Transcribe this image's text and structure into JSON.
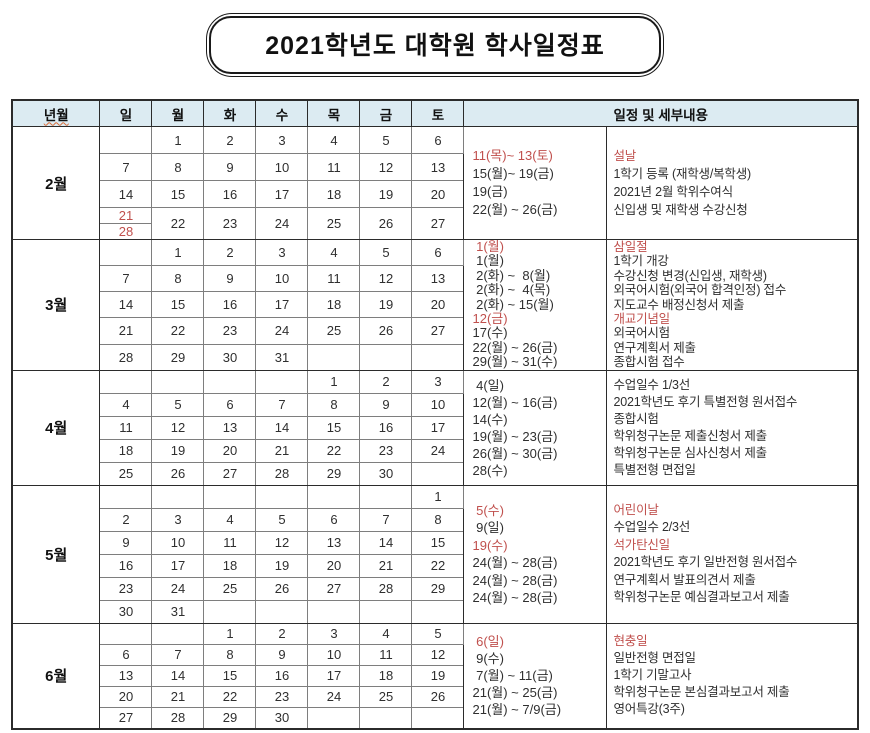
{
  "title": "2021학년도  대학원  학사일정표",
  "colors": {
    "holiday_red": "#c0504d",
    "saturday_blue": "#4d55a8",
    "header_bg": "#dcebf2"
  },
  "header": {
    "month_col": "년월",
    "days": [
      "일",
      "월",
      "화",
      "수",
      "목",
      "금",
      "토"
    ],
    "schedule_col": "일정 및 세부내용"
  },
  "months": [
    {
      "id": "feb",
      "label": "2월",
      "weeks": [
        [
          "",
          "1",
          "2",
          "3",
          "4",
          "5",
          "6"
        ],
        [
          "7",
          "8",
          "9",
          "10",
          "11",
          "12",
          "13"
        ],
        [
          "14",
          "15",
          "16",
          "17",
          "18",
          "19",
          "20"
        ],
        [
          "21|28",
          "22",
          "23",
          "24",
          "25",
          "26",
          "27"
        ]
      ],
      "red_days": [
        7,
        11,
        12,
        13,
        14,
        21,
        28
      ],
      "blue_days": [
        6,
        20,
        27
      ],
      "schedule": [
        {
          "date": "11(목)~ 13(토)",
          "detail": "설날",
          "red": true
        },
        {
          "date": "15(월)~ 19(금)",
          "detail": "1학기 등록 (재학생/복학생)",
          "red": false
        },
        {
          "date": "19(금)",
          "detail": "2021년 2월 학위수여식",
          "red": false
        },
        {
          "date": "22(월) ~ 26(금)",
          "detail": "신입생 및 재학생 수강신청",
          "red": false
        }
      ]
    },
    {
      "id": "mar",
      "label": "3월",
      "weeks": [
        [
          "",
          "1",
          "2",
          "3",
          "4",
          "5",
          "6"
        ],
        [
          "7",
          "8",
          "9",
          "10",
          "11",
          "12",
          "13"
        ],
        [
          "14",
          "15",
          "16",
          "17",
          "18",
          "19",
          "20"
        ],
        [
          "21",
          "22",
          "23",
          "24",
          "25",
          "26",
          "27"
        ],
        [
          "28",
          "29",
          "30",
          "31",
          "",
          "",
          ""
        ]
      ],
      "red_days": [
        1,
        7,
        12,
        14,
        21,
        28
      ],
      "blue_days": [
        6,
        13,
        20,
        27
      ],
      "schedule": [
        {
          "date": " 1(월)",
          "detail": "삼일절",
          "red": true
        },
        {
          "date": " 1(월)",
          "detail": "1학기 개강",
          "red": false
        },
        {
          "date": " 2(화) ~  8(월)",
          "detail": "수강신청 변경(신입생, 재학생)",
          "red": false
        },
        {
          "date": " 2(화) ~  4(목)",
          "detail": "외국어시험(외국어 합격인정) 접수",
          "red": false
        },
        {
          "date": " 2(화) ~ 15(월)",
          "detail": "지도교수 배정신청서 제출",
          "red": false
        },
        {
          "date": "12(금)",
          "detail": "개교기념일",
          "red": true
        },
        {
          "date": "17(수)",
          "detail": "외국어시험",
          "red": false
        },
        {
          "date": "22(월) ~ 26(금)",
          "detail": "연구계획서 제출",
          "red": false
        },
        {
          "date": "29(월) ~ 31(수)",
          "detail": "종합시험 접수",
          "red": false
        }
      ]
    },
    {
      "id": "apr",
      "label": "4월",
      "weeks": [
        [
          "",
          "",
          "",
          "",
          "1",
          "2",
          "3"
        ],
        [
          "4",
          "5",
          "6",
          "7",
          "8",
          "9",
          "10"
        ],
        [
          "11",
          "12",
          "13",
          "14",
          "15",
          "16",
          "17"
        ],
        [
          "18",
          "19",
          "20",
          "21",
          "22",
          "23",
          "24"
        ],
        [
          "25",
          "26",
          "27",
          "28",
          "29",
          "30",
          ""
        ]
      ],
      "red_days": [
        4,
        11,
        18,
        25
      ],
      "blue_days": [
        3,
        10,
        17,
        24
      ],
      "schedule": [
        {
          "date": " 4(일)",
          "detail": "수업일수 1/3선",
          "red": false
        },
        {
          "date": "12(월) ~ 16(금)",
          "detail": "2021학년도 후기 특별전형 원서접수",
          "red": false
        },
        {
          "date": "14(수)",
          "detail": "종합시험",
          "red": false
        },
        {
          "date": "19(월) ~ 23(금)",
          "detail": "학위청구논문 제출신청서 제출",
          "red": false
        },
        {
          "date": "26(월) ~ 30(금)",
          "detail": "학위청구논문 심사신청서 제출",
          "red": false
        },
        {
          "date": "28(수)",
          "detail": "특별전형 면접일",
          "red": false
        }
      ]
    },
    {
      "id": "may",
      "label": "5월",
      "weeks": [
        [
          "",
          "",
          "",
          "",
          "",
          "",
          "1"
        ],
        [
          "2",
          "3",
          "4",
          "5",
          "6",
          "7",
          "8"
        ],
        [
          "9",
          "10",
          "11",
          "12",
          "13",
          "14",
          "15"
        ],
        [
          "16",
          "17",
          "18",
          "19",
          "20",
          "21",
          "22"
        ],
        [
          "23",
          "24",
          "25",
          "26",
          "27",
          "28",
          "29"
        ],
        [
          "30",
          "31",
          "",
          "",
          "",
          "",
          ""
        ]
      ],
      "red_days": [
        2,
        5,
        9,
        16,
        19,
        23,
        30
      ],
      "blue_days": [
        1,
        8,
        15,
        22,
        29
      ],
      "schedule": [
        {
          "date": " 5(수)",
          "detail": "어린이날",
          "red": true
        },
        {
          "date": " 9(일)",
          "detail": "수업일수 2/3선",
          "red": false
        },
        {
          "date": "19(수)",
          "detail": "석가탄신일",
          "red": true
        },
        {
          "date": "24(월) ~ 28(금)",
          "detail": "2021학년도 후기 일반전형 원서접수",
          "red": false
        },
        {
          "date": "24(월) ~ 28(금)",
          "detail": "연구계획서 발표의견서 제출",
          "red": false
        },
        {
          "date": "24(월) ~ 28(금)",
          "detail": "학위청구논문 예심결과보고서 제출",
          "red": false
        }
      ]
    },
    {
      "id": "jun",
      "label": "6월",
      "weeks": [
        [
          "",
          "",
          "1",
          "2",
          "3",
          "4",
          "5"
        ],
        [
          "6",
          "7",
          "8",
          "9",
          "10",
          "11",
          "12"
        ],
        [
          "13",
          "14",
          "15",
          "16",
          "17",
          "18",
          "19"
        ],
        [
          "20",
          "21",
          "22",
          "23",
          "24",
          "25",
          "26"
        ],
        [
          "27",
          "28",
          "29",
          "30",
          "",
          "",
          ""
        ]
      ],
      "red_days": [
        6,
        13,
        20,
        27
      ],
      "blue_days": [
        5,
        12,
        19,
        26
      ],
      "schedule": [
        {
          "date": " 6(일)",
          "detail": "현충일",
          "red": true
        },
        {
          "date": " 9(수)",
          "detail": "일반전형 면접일",
          "red": false
        },
        {
          "date": " 7(월) ~ 11(금)",
          "detail": "1학기 기말고사",
          "red": false
        },
        {
          "date": "21(월) ~ 25(금)",
          "detail": "학위청구논문 본심결과보고서 제출",
          "red": false
        },
        {
          "date": "21(월) ~ 7/9(금)",
          "detail": "영어특강(3주)",
          "red": false
        }
      ]
    }
  ]
}
